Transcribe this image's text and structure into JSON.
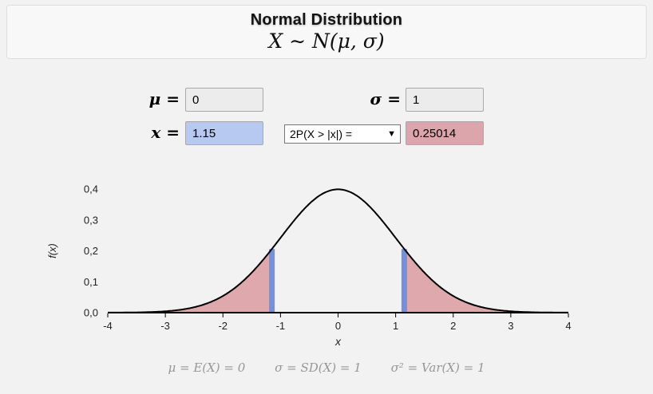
{
  "header": {
    "title": "Normal Distribution",
    "formula": "X ∼ N(μ, σ)"
  },
  "controls": {
    "mu": {
      "label": "μ =",
      "value": "0"
    },
    "sigma": {
      "label": "σ =",
      "value": "1"
    },
    "x": {
      "label": "x =",
      "value": "1.15"
    },
    "probability_select": {
      "selected": "2P(X > |x|) ="
    },
    "result": {
      "value": "0.25014"
    }
  },
  "footer": {
    "mean": "μ = E(X) = 0",
    "sd": "σ = SD(X) = 1",
    "var": "σ² = Var(X) = 1"
  },
  "colors": {
    "curve": "#000000",
    "tail_fill": "#dfa8ad",
    "marker_blue": "#7490dc",
    "x_input_bg": "#b7c8f1",
    "result_bg": "#dca5ab"
  },
  "chart_data": {
    "type": "area",
    "title": "",
    "xlabel": "x",
    "ylabel": "f(x)",
    "xlim": [
      -4,
      4
    ],
    "ylim": [
      0,
      0.4
    ],
    "x_ticks": [
      -4,
      -3,
      -2,
      -1,
      0,
      1,
      2,
      3,
      4
    ],
    "y_tick_labels": [
      "0,0",
      "0,1",
      "0,2",
      "0,3",
      "0,4"
    ],
    "distribution": "normal",
    "mu": 0,
    "sigma": 1,
    "shaded_tail_cutoff": 1.15,
    "shaded_region": "two tails |X| > 1.15",
    "tail_probability": 0.25014,
    "marker_positions": [
      -1.15,
      1.15
    ],
    "grid": false,
    "legend": false
  }
}
